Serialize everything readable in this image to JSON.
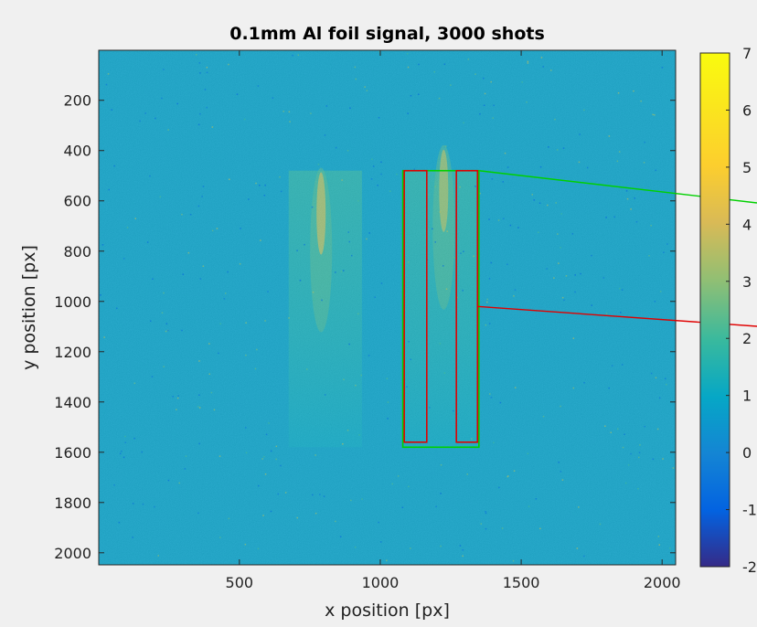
{
  "chart_data": {
    "type": "heatmap",
    "title": "0.1mm Al foil signal, 3000 shots",
    "xlabel": "x position [px]",
    "ylabel": "y position [px]",
    "xlim": [
      1,
      2048
    ],
    "ylim": [
      1,
      2048
    ],
    "y_direction": "reversed",
    "x_ticks": [
      500,
      1000,
      1500,
      2000
    ],
    "y_ticks": [
      200,
      400,
      600,
      800,
      1000,
      1200,
      1400,
      1600,
      1800,
      2000
    ],
    "colorbar": {
      "colormap": "parula",
      "range": [
        -2,
        7
      ],
      "ticks": [
        "7",
        "6",
        "5",
        "4",
        "3",
        "2",
        "1",
        "0",
        "-1",
        "-2"
      ]
    },
    "background_value": 0.8,
    "features": [
      {
        "kind": "signal_region",
        "x": [
          675,
          935
        ],
        "y": [
          480,
          1580
        ],
        "peak_value": 3.5,
        "peak_location": [
          790,
          650
        ]
      },
      {
        "kind": "signal_region",
        "x": [
          1080,
          1350
        ],
        "y": [
          480,
          1580
        ],
        "peak_value": 3.2,
        "peak_location": [
          1225,
          560
        ]
      }
    ],
    "annotations": [
      {
        "kind": "rectangle",
        "color": "#00d000",
        "x": [
          1080,
          1350
        ],
        "y": [
          480,
          1580
        ]
      },
      {
        "kind": "rectangle",
        "color": "#e00000",
        "x": [
          1085,
          1165
        ],
        "y": [
          480,
          1560
        ]
      },
      {
        "kind": "rectangle",
        "color": "#e00000",
        "x": [
          1270,
          1345
        ],
        "y": [
          480,
          1560
        ]
      },
      {
        "kind": "leader_line",
        "color": "#00d000",
        "from": [
          1350,
          480
        ]
      },
      {
        "kind": "leader_line",
        "color": "#e00000",
        "from": [
          1345,
          1020
        ]
      }
    ]
  }
}
